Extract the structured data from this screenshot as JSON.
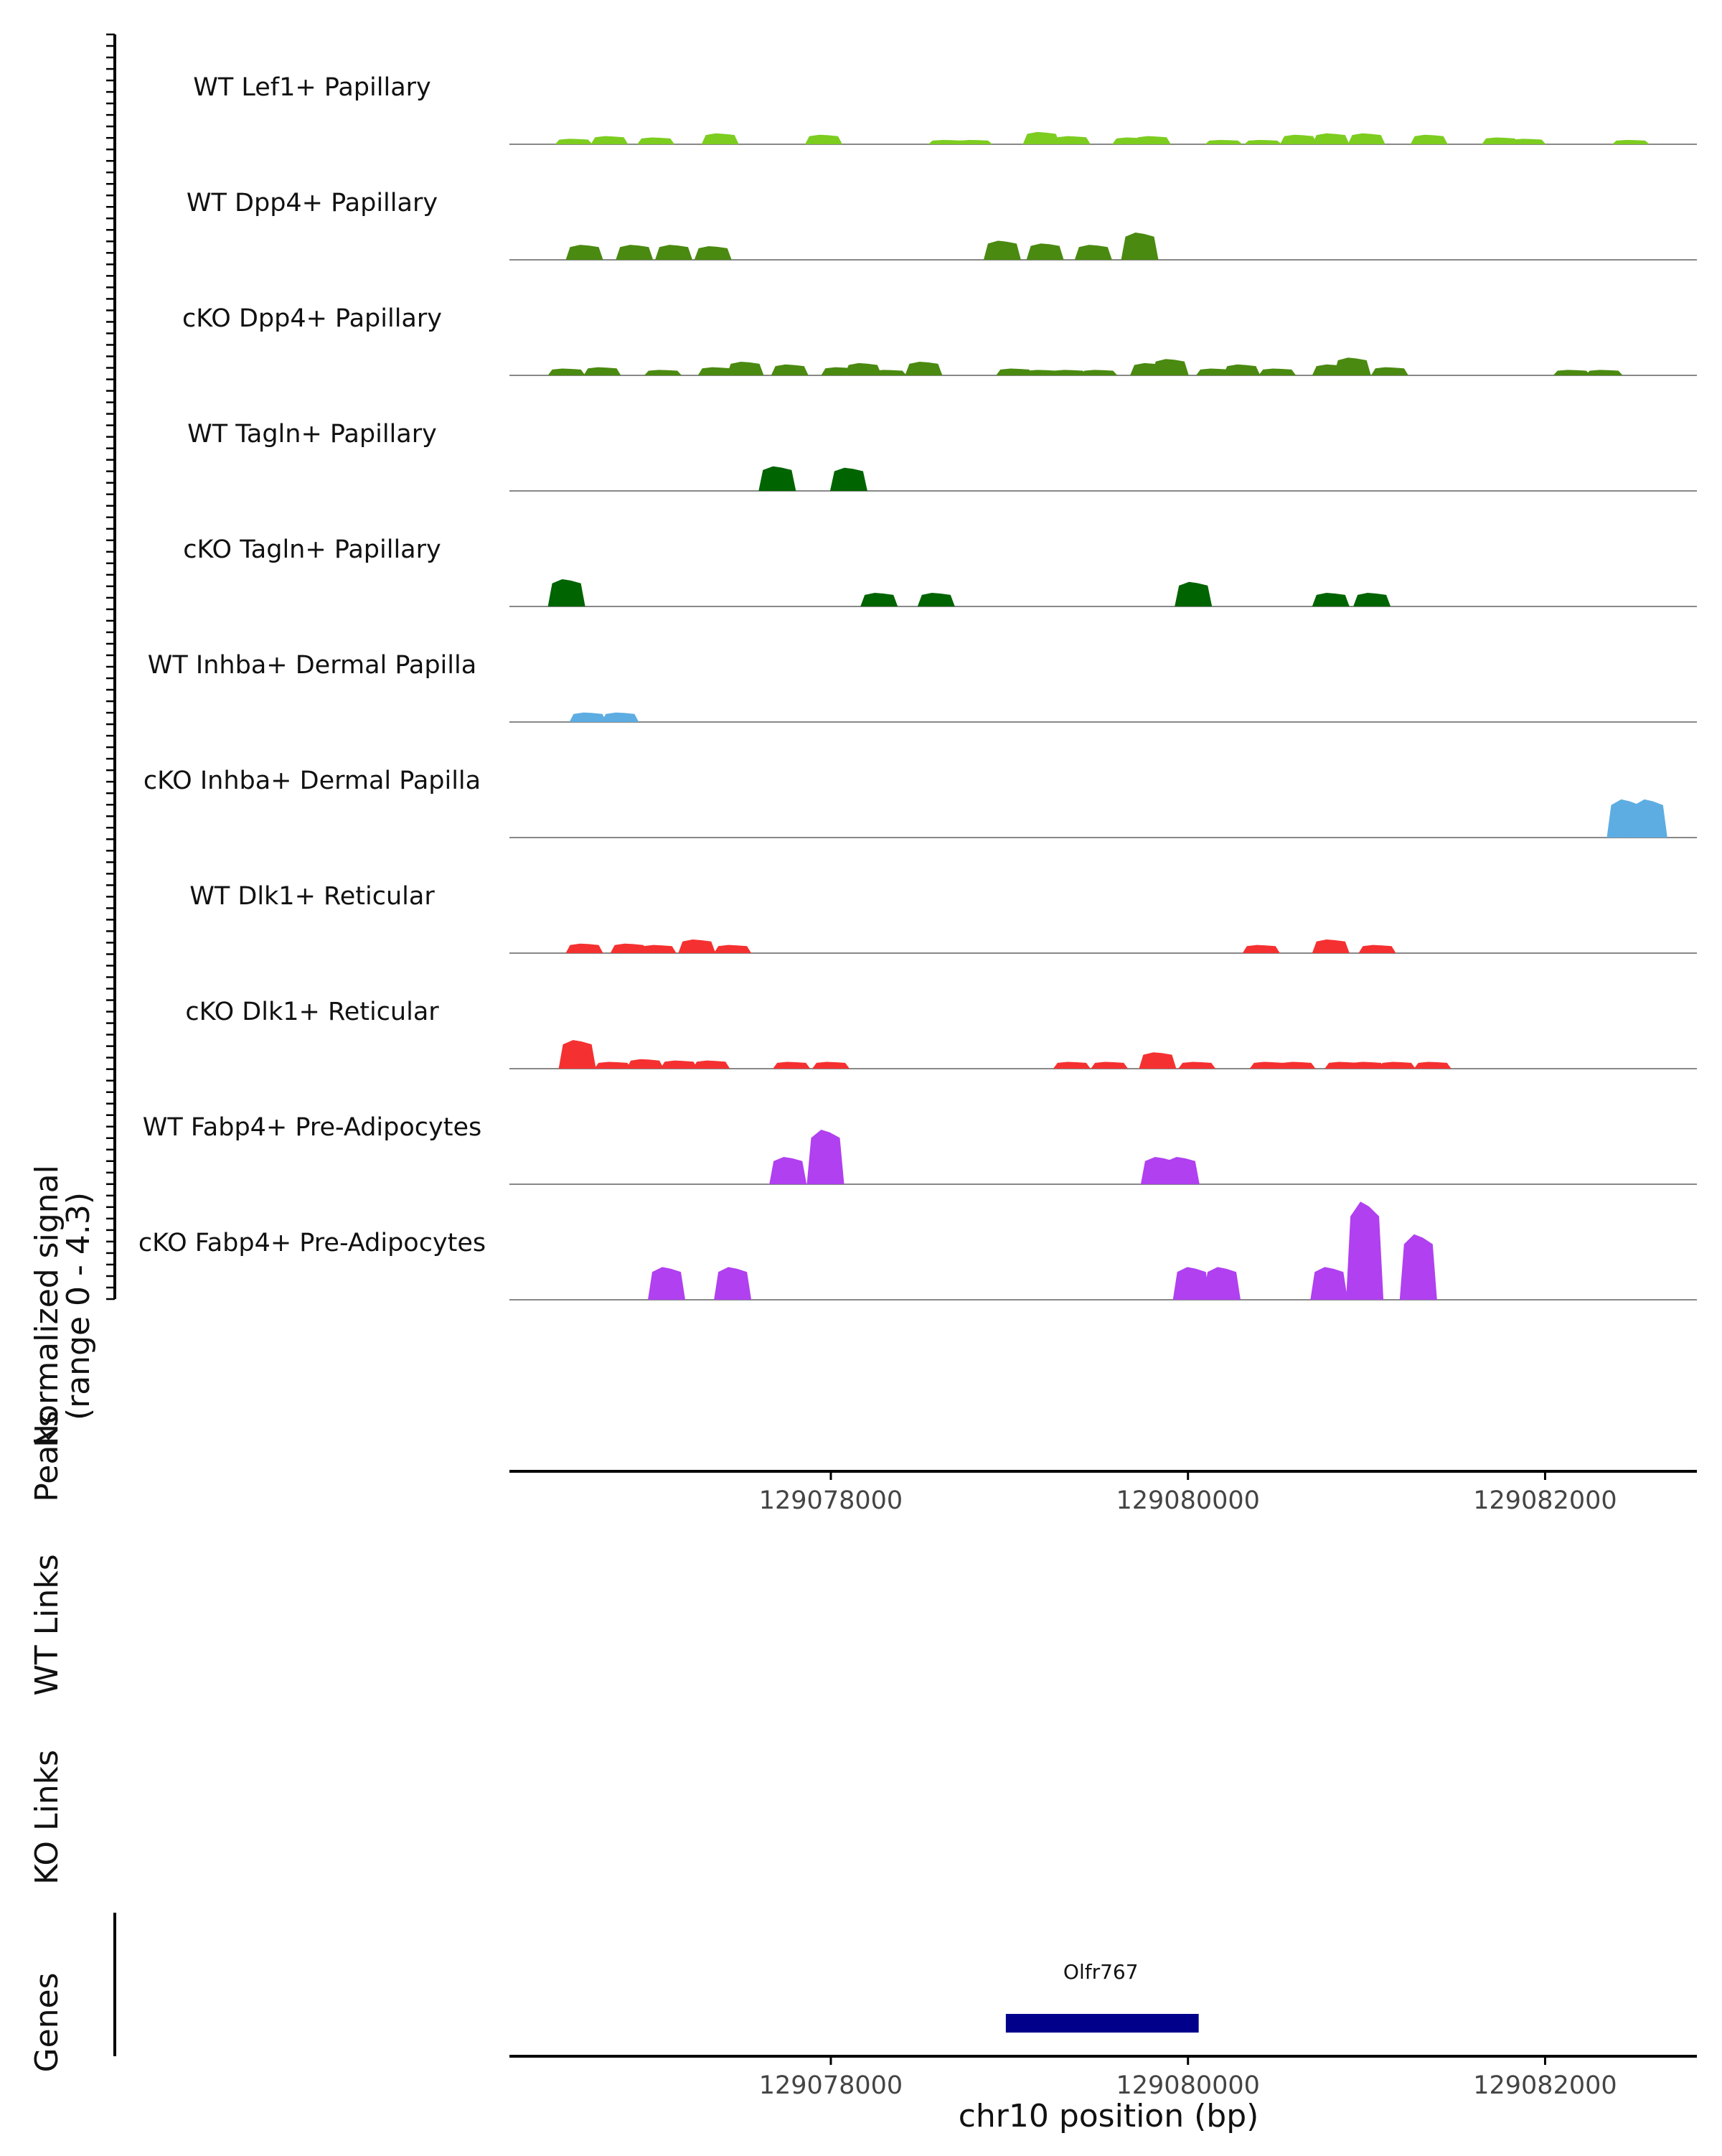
{
  "chart_data": {
    "type": "area",
    "chromosome": "chr10",
    "xlim": [
      129076200,
      129082850
    ],
    "x_ticks": [
      129078000,
      129080000,
      129082000
    ],
    "x_tick_labels": [
      "129078000",
      "129080000",
      "129082000"
    ],
    "xlabel": "chr10 position (bp)",
    "ylabel": "Normalized signal",
    "ylabel_range": "(range 0 - 4.3)",
    "ylim": [
      0,
      4.3
    ],
    "section_labels": {
      "peaks": "Peaks",
      "wt_links": "WT Links",
      "ko_links": "KO Links",
      "genes": "Genes"
    },
    "series": [
      {
        "name": "WT Lef1+ Papillary",
        "color": "#7CCD20",
        "values": [
          [
            129076560,
            0.2
          ],
          [
            129076760,
            0.3
          ],
          [
            129077020,
            0.25
          ],
          [
            129077380,
            0.4
          ],
          [
            129077960,
            0.35
          ],
          [
            129078650,
            0.15
          ],
          [
            129078800,
            0.15
          ],
          [
            129079180,
            0.45
          ],
          [
            129079350,
            0.3
          ],
          [
            129079680,
            0.25
          ],
          [
            129079800,
            0.3
          ],
          [
            129080200,
            0.15
          ],
          [
            129080420,
            0.15
          ],
          [
            129080620,
            0.35
          ],
          [
            129080800,
            0.4
          ],
          [
            129081000,
            0.4
          ],
          [
            129081350,
            0.35
          ],
          [
            129081750,
            0.25
          ],
          [
            129081900,
            0.2
          ],
          [
            129082480,
            0.15
          ]
        ]
      },
      {
        "name": "WT Dpp4+ Papillary",
        "color": "#4A8A10",
        "values": [
          [
            129076620,
            0.55
          ],
          [
            129076900,
            0.55
          ],
          [
            129077120,
            0.55
          ],
          [
            129077340,
            0.5
          ],
          [
            129078960,
            0.7
          ],
          [
            129079200,
            0.6
          ],
          [
            129079470,
            0.55
          ],
          [
            129079730,
            1.0
          ]
        ]
      },
      {
        "name": "cKO Dpp4+ Papillary",
        "color": "#4A8A10",
        "values": [
          [
            129076520,
            0.25
          ],
          [
            129076720,
            0.3
          ],
          [
            129077060,
            0.2
          ],
          [
            129077360,
            0.3
          ],
          [
            129077520,
            0.5
          ],
          [
            129077770,
            0.4
          ],
          [
            129078050,
            0.3
          ],
          [
            129078180,
            0.45
          ],
          [
            129078320,
            0.2
          ],
          [
            129078520,
            0.5
          ],
          [
            129079030,
            0.25
          ],
          [
            129079180,
            0.2
          ],
          [
            129079330,
            0.2
          ],
          [
            129079500,
            0.2
          ],
          [
            129079780,
            0.45
          ],
          [
            129079900,
            0.6
          ],
          [
            129080150,
            0.25
          ],
          [
            129080300,
            0.4
          ],
          [
            129080500,
            0.25
          ],
          [
            129080800,
            0.4
          ],
          [
            129080920,
            0.65
          ],
          [
            129081130,
            0.3
          ],
          [
            129082150,
            0.2
          ],
          [
            129082330,
            0.2
          ]
        ]
      },
      {
        "name": "WT Tagln+ Papillary",
        "color": "#006400",
        "values": [
          [
            129077700,
            0.9
          ],
          [
            129078100,
            0.85
          ]
        ]
      },
      {
        "name": "cKO Tagln+ Papillary",
        "color": "#006400",
        "values": [
          [
            129076520,
            1.0
          ],
          [
            129078270,
            0.5
          ],
          [
            129078590,
            0.5
          ],
          [
            129080030,
            0.9
          ],
          [
            129080800,
            0.5
          ],
          [
            129081030,
            0.5
          ]
        ]
      },
      {
        "name": "WT Inhba+ Dermal Papilla",
        "color": "#5DADE2",
        "values": [
          [
            129076640,
            0.35
          ],
          [
            129076820,
            0.35
          ]
        ]
      },
      {
        "name": "cKO Inhba+ Dermal Papilla",
        "color": "#5DADE2",
        "values": [
          [
            129082450,
            1.4
          ],
          [
            129082580,
            1.4
          ]
        ]
      },
      {
        "name": "WT Dlk1+ Reticular",
        "color": "#F53030",
        "values": [
          [
            129076620,
            0.35
          ],
          [
            129076870,
            0.35
          ],
          [
            129077030,
            0.3
          ],
          [
            129077250,
            0.5
          ],
          [
            129077450,
            0.3
          ],
          [
            129080410,
            0.3
          ],
          [
            129080800,
            0.5
          ],
          [
            129081060,
            0.3
          ]
        ]
      },
      {
        "name": "cKO Dlk1+ Reticular",
        "color": "#F53030",
        "values": [
          [
            129076580,
            1.05
          ],
          [
            129076780,
            0.25
          ],
          [
            129076960,
            0.35
          ],
          [
            129077150,
            0.3
          ],
          [
            129077330,
            0.3
          ],
          [
            129077780,
            0.25
          ],
          [
            129078000,
            0.25
          ],
          [
            129079350,
            0.25
          ],
          [
            129079560,
            0.25
          ],
          [
            129079830,
            0.6
          ],
          [
            129080050,
            0.25
          ],
          [
            129080450,
            0.25
          ],
          [
            129080610,
            0.25
          ],
          [
            129080870,
            0.25
          ],
          [
            129081000,
            0.25
          ],
          [
            129081170,
            0.25
          ],
          [
            129081370,
            0.25
          ]
        ]
      },
      {
        "name": "WT Fabp4+ Pre-Adipocytes",
        "color": "#B040F0",
        "values": [
          [
            129077760,
            1.0
          ],
          [
            129077970,
            2.0
          ],
          [
            129079840,
            1.0
          ],
          [
            129079960,
            1.0
          ]
        ]
      },
      {
        "name": "cKO Fabp4+ Pre-Adipocytes",
        "color": "#B040F0",
        "values": [
          [
            129077080,
            1.2
          ],
          [
            129077450,
            1.2
          ],
          [
            129080020,
            1.2
          ],
          [
            129080190,
            1.2
          ],
          [
            129080790,
            1.2
          ],
          [
            129080990,
            3.6
          ],
          [
            129081290,
            2.4
          ]
        ]
      }
    ],
    "genes": [
      {
        "name": "Olfr767",
        "start": 129078980,
        "end": 129080060,
        "color": "#00008B"
      }
    ]
  }
}
